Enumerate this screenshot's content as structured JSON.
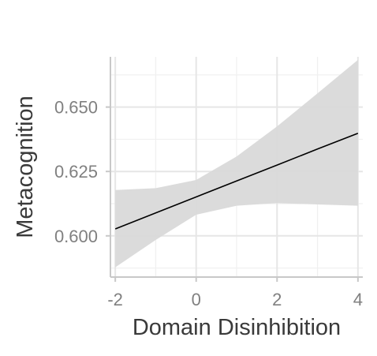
{
  "chart_data": {
    "type": "line",
    "xlabel": "Domain Disinhibition",
    "ylabel": "Metacognition",
    "xlim": [
      -2.12,
      4.12
    ],
    "ylim": [
      0.584,
      0.6695
    ],
    "x_ticks": [
      -2,
      0,
      2,
      4
    ],
    "x_tick_labels": [
      "-2",
      "0",
      "2",
      "4"
    ],
    "y_ticks": [
      0.6,
      0.625,
      0.65
    ],
    "y_tick_labels": [
      "0.600",
      "0.625",
      "0.650"
    ],
    "grid": true,
    "legend": "none",
    "series": [
      {
        "x": [
          -2,
          -1,
          0,
          1,
          2,
          3,
          4
        ],
        "y": [
          0.6027,
          0.6089,
          0.6151,
          0.6213,
          0.6275,
          0.6337,
          0.6398
        ],
        "ci_lower": [
          0.5878,
          0.5984,
          0.6082,
          0.6117,
          0.6127,
          0.6122,
          0.6117
        ],
        "ci_upper": [
          0.6178,
          0.6185,
          0.6217,
          0.6308,
          0.6425,
          0.6553,
          0.6683
        ],
        "color": "#000000",
        "ribbon_color": "#d9d9d9"
      }
    ]
  }
}
